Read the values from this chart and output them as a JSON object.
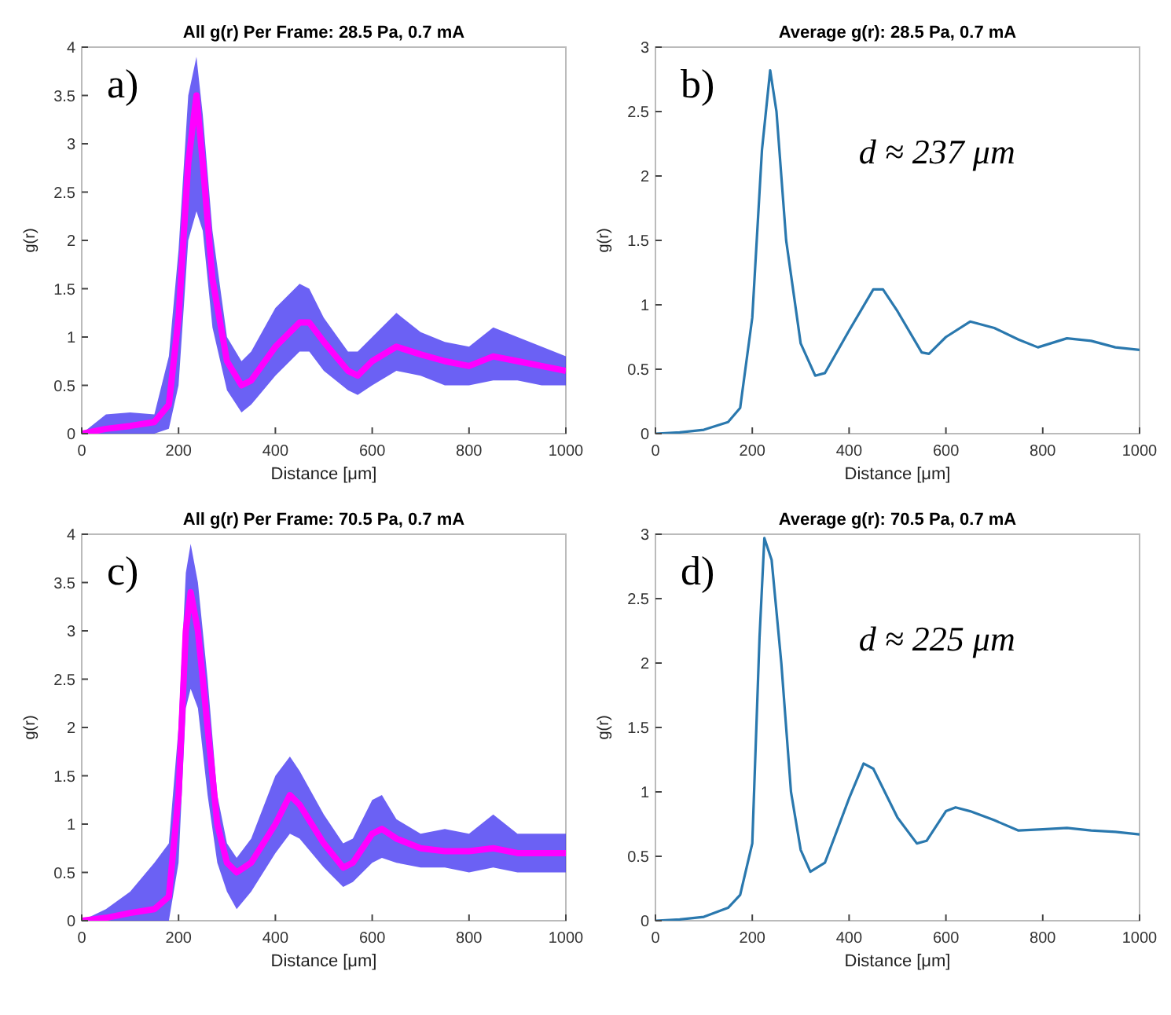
{
  "chart_data": [
    {
      "type": "line",
      "title": "All g(r) Per Frame: 28.5 Pa, 0.7 mA",
      "xlabel": "Distance [μm]",
      "ylabel": "g(r)",
      "annotations": [
        "a)"
      ],
      "x": [
        0,
        50,
        100,
        150,
        180,
        200,
        220,
        237,
        250,
        270,
        300,
        330,
        350,
        400,
        450,
        470,
        500,
        550,
        570,
        600,
        650,
        700,
        750,
        800,
        850,
        900,
        950,
        1000
      ],
      "series": [
        {
          "color": "#ff00ff",
          "values": [
            0,
            0.05,
            0.08,
            0.12,
            0.3,
            1.2,
            2.8,
            3.5,
            2.8,
            1.6,
            0.75,
            0.5,
            0.55,
            0.9,
            1.15,
            1.15,
            0.95,
            0.65,
            0.6,
            0.75,
            0.9,
            0.82,
            0.75,
            0.7,
            0.8,
            0.75,
            0.7,
            0.65
          ],
          "lower": [
            0,
            0,
            0,
            0,
            0.05,
            0.5,
            2.0,
            2.3,
            2.1,
            1.1,
            0.45,
            0.22,
            0.3,
            0.6,
            0.85,
            0.85,
            0.65,
            0.45,
            0.4,
            0.5,
            0.65,
            0.6,
            0.5,
            0.5,
            0.55,
            0.55,
            0.5,
            0.5
          ],
          "upper": [
            0,
            0.2,
            0.22,
            0.2,
            0.8,
            1.9,
            3.5,
            3.9,
            3.3,
            2.1,
            1.0,
            0.75,
            0.85,
            1.3,
            1.55,
            1.5,
            1.2,
            0.85,
            0.85,
            1.0,
            1.25,
            1.05,
            0.95,
            0.9,
            1.1,
            1.0,
            0.9,
            0.8
          ]
        }
      ],
      "xlim": [
        0,
        1000
      ],
      "xticks": [
        0,
        200,
        400,
        600,
        800,
        1000
      ],
      "ylim": [
        0,
        4
      ],
      "yticks": [
        0,
        0.5,
        1,
        1.5,
        2,
        2.5,
        3,
        3.5,
        4
      ]
    },
    {
      "type": "line",
      "title": "Average g(r): 28.5 Pa, 0.7 mA",
      "xlabel": "Distance [μm]",
      "ylabel": "g(r)",
      "annotations": [
        "b)",
        "d ≈ 237 μm"
      ],
      "x": [
        0,
        50,
        100,
        150,
        175,
        200,
        220,
        237,
        250,
        270,
        300,
        330,
        350,
        400,
        450,
        470,
        500,
        550,
        565,
        600,
        650,
        700,
        750,
        790,
        850,
        900,
        950,
        1000
      ],
      "series": [
        {
          "color": "#2a78ae",
          "values": [
            0,
            0.01,
            0.03,
            0.09,
            0.2,
            0.9,
            2.2,
            2.82,
            2.5,
            1.5,
            0.7,
            0.45,
            0.47,
            0.8,
            1.12,
            1.12,
            0.95,
            0.63,
            0.62,
            0.75,
            0.87,
            0.82,
            0.73,
            0.67,
            0.74,
            0.72,
            0.67,
            0.65
          ]
        }
      ],
      "xlim": [
        0,
        1000
      ],
      "xticks": [
        0,
        200,
        400,
        600,
        800,
        1000
      ],
      "ylim": [
        0,
        3
      ],
      "yticks": [
        0,
        0.5,
        1,
        1.5,
        2,
        2.5,
        3
      ]
    },
    {
      "type": "line",
      "title": "All g(r) Per Frame: 70.5 Pa, 0.7 mA",
      "xlabel": "Distance [μm]",
      "ylabel": "g(r)",
      "annotations": [
        "c)"
      ],
      "x": [
        0,
        50,
        100,
        150,
        180,
        200,
        215,
        225,
        240,
        260,
        280,
        300,
        320,
        350,
        400,
        430,
        450,
        500,
        540,
        560,
        600,
        620,
        650,
        700,
        750,
        800,
        850,
        900,
        950,
        1000
      ],
      "series": [
        {
          "color": "#ff00ff",
          "values": [
            0,
            0.03,
            0.08,
            0.12,
            0.25,
            1.3,
            3.0,
            3.4,
            3.0,
            2.0,
            1.0,
            0.6,
            0.5,
            0.6,
            1.0,
            1.3,
            1.2,
            0.8,
            0.55,
            0.6,
            0.9,
            0.95,
            0.85,
            0.75,
            0.72,
            0.72,
            0.75,
            0.7,
            0.7,
            0.7
          ],
          "lower": [
            0,
            0,
            0,
            0,
            0,
            0.6,
            2.2,
            2.4,
            2.2,
            1.3,
            0.6,
            0.3,
            0.12,
            0.3,
            0.7,
            0.9,
            0.85,
            0.55,
            0.35,
            0.4,
            0.6,
            0.65,
            0.6,
            0.55,
            0.55,
            0.5,
            0.55,
            0.5,
            0.5,
            0.5
          ],
          "upper": [
            0,
            0.12,
            0.3,
            0.6,
            0.8,
            2.0,
            3.6,
            3.9,
            3.5,
            2.5,
            1.3,
            0.8,
            0.65,
            0.85,
            1.5,
            1.7,
            1.55,
            1.1,
            0.8,
            0.85,
            1.25,
            1.3,
            1.05,
            0.9,
            0.95,
            0.9,
            1.1,
            0.9,
            0.9,
            0.9
          ]
        }
      ],
      "xlim": [
        0,
        1000
      ],
      "xticks": [
        0,
        200,
        400,
        600,
        800,
        1000
      ],
      "ylim": [
        0,
        4
      ],
      "yticks": [
        0,
        0.5,
        1,
        1.5,
        2,
        2.5,
        3,
        3.5,
        4
      ]
    },
    {
      "type": "line",
      "title": "Average g(r): 70.5 Pa, 0.7 mA",
      "xlabel": "Distance [μm]",
      "ylabel": "g(r)",
      "annotations": [
        "d)",
        "d ≈ 225 μm"
      ],
      "x": [
        0,
        50,
        100,
        150,
        175,
        200,
        215,
        225,
        240,
        260,
        280,
        300,
        320,
        350,
        400,
        430,
        450,
        500,
        540,
        560,
        600,
        620,
        650,
        700,
        750,
        800,
        850,
        900,
        950,
        1000
      ],
      "series": [
        {
          "color": "#2a78ae",
          "values": [
            0,
            0.01,
            0.03,
            0.1,
            0.2,
            0.6,
            2.2,
            2.97,
            2.8,
            2,
            1,
            0.55,
            0.38,
            0.45,
            0.95,
            1.22,
            1.18,
            0.8,
            0.6,
            0.62,
            0.85,
            0.88,
            0.85,
            0.78,
            0.7,
            0.71,
            0.72,
            0.7,
            0.69,
            0.67
          ]
        }
      ],
      "xlim": [
        0,
        1000
      ],
      "xticks": [
        0,
        200,
        400,
        600,
        800,
        1000
      ],
      "ylim": [
        0,
        3
      ],
      "yticks": [
        0,
        0.5,
        1,
        1.5,
        2,
        2.5,
        3
      ]
    }
  ]
}
